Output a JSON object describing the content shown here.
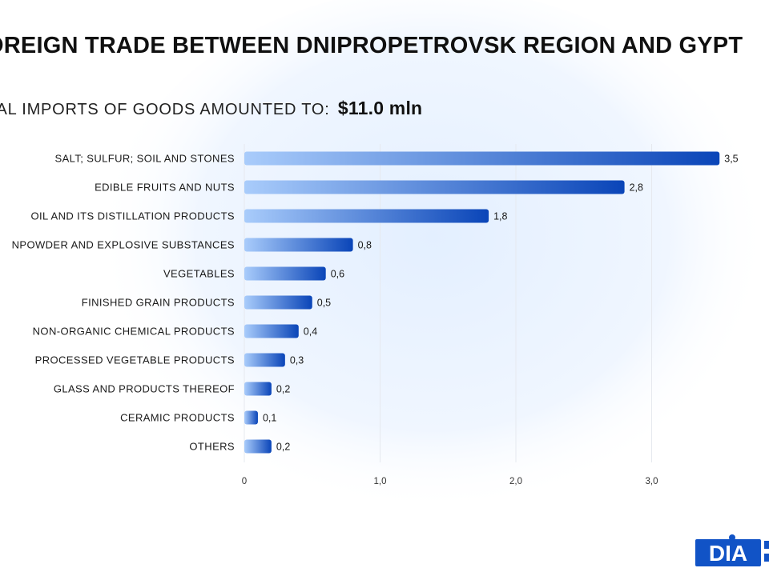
{
  "header": {
    "title": "OREIGN TRADE BETWEEN DNIPROPETROVSK REGION AND GYPT",
    "subtitle_prefix": "TAL IMPORTS OF GOODS AMOUNTED TO:",
    "subtitle_total": "$11.0 mln"
  },
  "logo": {
    "text": "DIA"
  },
  "colors": {
    "bar_start": "#a9ccfb",
    "bar_end": "#0a45b8",
    "grid": "#e6e9ef",
    "logo": "#1153c6"
  },
  "chart_data": {
    "type": "bar",
    "orientation": "horizontal",
    "categories": [
      "SALT; SULFUR; SOIL AND STONES",
      "EDIBLE FRUITS AND NUTS",
      "OIL AND ITS DISTILLATION PRODUCTS",
      "NPOWDER AND EXPLOSIVE SUBSTANCES",
      "VEGETABLES",
      "FINISHED GRAIN PRODUCTS",
      "NON-ORGANIC CHEMICAL PRODUCTS",
      "PROCESSED VEGETABLE PRODUCTS",
      "GLASS AND PRODUCTS THEREOF",
      "CERAMIC PRODUCTS",
      "OTHERS"
    ],
    "values": [
      3.5,
      2.8,
      1.8,
      0.8,
      0.6,
      0.5,
      0.4,
      0.3,
      0.2,
      0.1,
      0.2
    ],
    "value_labels": [
      "3,5",
      "2,8",
      "1,8",
      "0,8",
      "0,6",
      "0,5",
      "0,4",
      "0,3",
      "0,2",
      "0,1",
      "0,2"
    ],
    "xlim": [
      0,
      3.6
    ],
    "xticks": [
      0,
      1,
      2,
      3
    ],
    "xtick_labels": [
      "0",
      "1,0",
      "2,0",
      "3,0"
    ],
    "grid": true,
    "legend": "none"
  }
}
